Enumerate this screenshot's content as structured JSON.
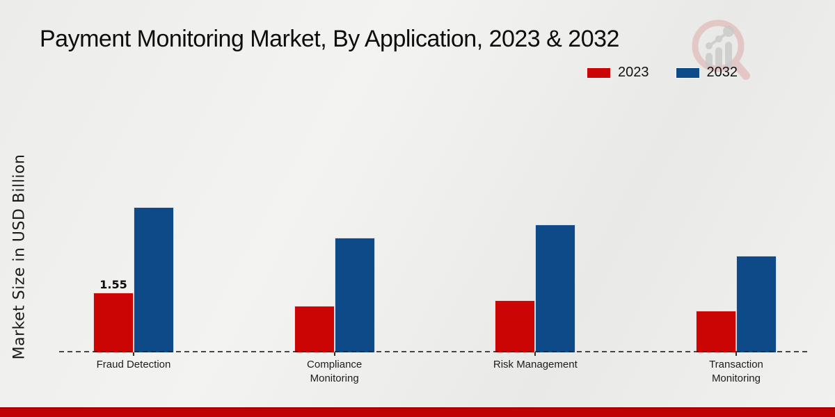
{
  "page": {
    "bottom_bar_color": "#c10202",
    "background_base": "#ededeb"
  },
  "chart_data": {
    "type": "bar",
    "title": "Payment Monitoring Market, By Application, 2023 & 2032",
    "xlabel": "",
    "ylabel": "Market Size in USD Billion",
    "categories": [
      "Fraud Detection",
      "Compliance Monitoring",
      "Risk Management",
      "Transaction Monitoring"
    ],
    "series": [
      {
        "name": "2023",
        "color": "#cb0404",
        "values": [
          1.55,
          1.21,
          1.35,
          1.08
        ]
      },
      {
        "name": "2032",
        "color": "#0f4a88",
        "values": [
          3.77,
          2.97,
          3.32,
          2.51
        ]
      }
    ],
    "bar_value_labels": [
      {
        "series": "2023",
        "category": "Fraud Detection",
        "text": "1.55"
      }
    ],
    "ylim": [
      0,
      4.2
    ],
    "grid": false,
    "legend_position": "top-right",
    "baseline_style": "dashed",
    "axis_lines_visible": false
  },
  "icons": {
    "watermark": "magnifier-bar-chart-logo"
  }
}
